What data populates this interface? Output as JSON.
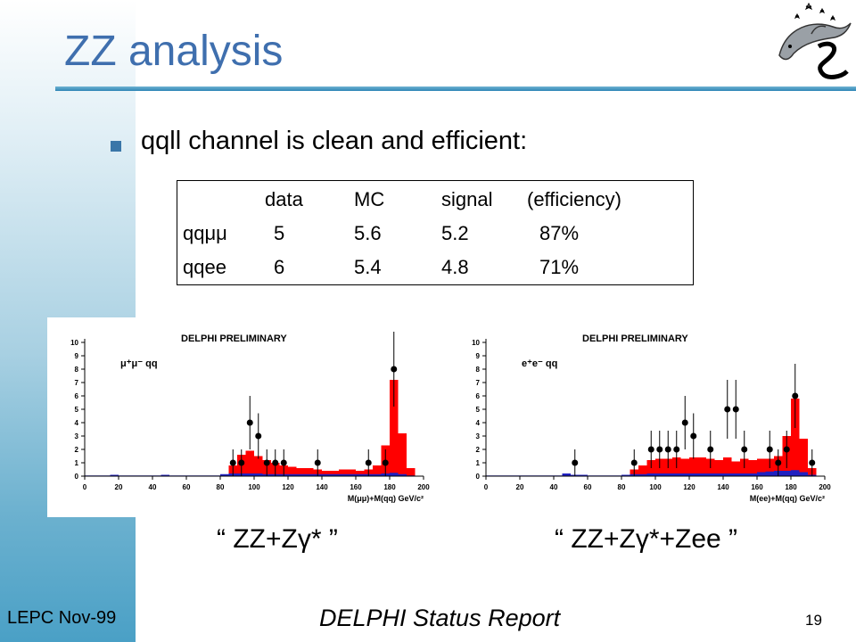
{
  "slide": {
    "title": "ZZ analysis",
    "bullet": "qqll channel is clean and efficient:",
    "footer_left": "LEPC Nov-99",
    "footer_center": "DELPHI Status Report",
    "page_number": "19",
    "colors": {
      "title": "#3f6fae",
      "rule": "#2f86b6",
      "sidebar": "#4aa0c6",
      "bullet": "#3a76a8"
    },
    "logo_icon": "delphi-dolphin-logo-icon"
  },
  "table": {
    "headers": [
      "",
      "data",
      "MC",
      "signal",
      "(efficiency)"
    ],
    "rows": [
      [
        "qqμμ",
        "5",
        "5.6",
        "5.2",
        "87%"
      ],
      [
        "qqee",
        "6",
        "5.4",
        "4.8",
        "71%"
      ]
    ]
  },
  "chart_data": [
    {
      "type": "bar",
      "title": "DELPHI PRELIMINARY",
      "annotation": "μ⁺μ⁻ qq",
      "xlabel": "M(μμ)+M(qq) GeV/c²",
      "caption": "“ ZZ+Zγ* ”",
      "xlim": [
        0,
        200
      ],
      "ylim": [
        0,
        10
      ],
      "xticks": [
        "0",
        "20",
        "40",
        "60",
        "80",
        "100",
        "120",
        "140",
        "160",
        "180",
        "200"
      ],
      "yticks": [
        "0",
        "1",
        "2",
        "3",
        "4",
        "5",
        "6",
        "7",
        "8",
        "9",
        "10"
      ],
      "bin_width": 5,
      "mc": {
        "color": "#ff0000",
        "bins": [
          [
            85,
            0.8
          ],
          [
            90,
            1.6
          ],
          [
            95,
            1.9
          ],
          [
            100,
            1.5
          ],
          [
            105,
            1.2
          ],
          [
            110,
            1.0
          ],
          [
            115,
            0.8
          ],
          [
            120,
            0.7
          ],
          [
            125,
            0.6
          ],
          [
            130,
            0.6
          ],
          [
            135,
            0.5
          ],
          [
            140,
            0.4
          ],
          [
            145,
            0.4
          ],
          [
            150,
            0.5
          ],
          [
            155,
            0.5
          ],
          [
            160,
            0.4
          ],
          [
            165,
            0.5
          ],
          [
            170,
            0.8
          ],
          [
            175,
            2.3
          ],
          [
            180,
            7.2
          ],
          [
            185,
            3.2
          ],
          [
            190,
            0.6
          ]
        ]
      },
      "background": {
        "color": "#2020c0",
        "bins": [
          [
            0,
            0.05
          ],
          [
            5,
            0.05
          ],
          [
            10,
            0.05
          ],
          [
            15,
            0.1
          ],
          [
            20,
            0.05
          ],
          [
            25,
            0.05
          ],
          [
            30,
            0.05
          ],
          [
            35,
            0.05
          ],
          [
            40,
            0.05
          ],
          [
            45,
            0.1
          ],
          [
            50,
            0.05
          ],
          [
            55,
            0.05
          ],
          [
            60,
            0.05
          ],
          [
            65,
            0.05
          ],
          [
            70,
            0.05
          ],
          [
            75,
            0.05
          ],
          [
            80,
            0.15
          ],
          [
            85,
            0.2
          ],
          [
            90,
            0.2
          ],
          [
            95,
            0.2
          ],
          [
            100,
            0.2
          ],
          [
            105,
            0.15
          ],
          [
            110,
            0.15
          ],
          [
            115,
            0.15
          ],
          [
            120,
            0.15
          ],
          [
            125,
            0.15
          ],
          [
            130,
            0.15
          ],
          [
            135,
            0.15
          ],
          [
            140,
            0.15
          ],
          [
            145,
            0.15
          ],
          [
            150,
            0.15
          ],
          [
            155,
            0.15
          ],
          [
            160,
            0.15
          ],
          [
            165,
            0.15
          ],
          [
            170,
            0.15
          ],
          [
            175,
            0.2
          ],
          [
            180,
            0.25
          ],
          [
            185,
            0.15
          ],
          [
            190,
            0.05
          ]
        ]
      },
      "data": [
        {
          "x": 87.5,
          "y": 1,
          "err": 1.0
        },
        {
          "x": 92.5,
          "y": 1,
          "err": 1.0
        },
        {
          "x": 97.5,
          "y": 4,
          "err": 2.0
        },
        {
          "x": 102.5,
          "y": 3,
          "err": 1.7
        },
        {
          "x": 107.5,
          "y": 1,
          "err": 1.0
        },
        {
          "x": 112.5,
          "y": 1,
          "err": 1.0
        },
        {
          "x": 117.5,
          "y": 1,
          "err": 1.0
        },
        {
          "x": 137.5,
          "y": 1,
          "err": 1.0
        },
        {
          "x": 167.5,
          "y": 1,
          "err": 1.0
        },
        {
          "x": 177.5,
          "y": 1,
          "err": 1.0
        },
        {
          "x": 182.5,
          "y": 8,
          "err": 2.8
        }
      ]
    },
    {
      "type": "bar",
      "title": "DELPHI PRELIMINARY",
      "annotation": "e⁺e⁻ qq",
      "xlabel": "M(ee)+M(qq) GeV/c²",
      "caption": "“ ZZ+Zγ*+Zee ”",
      "xlim": [
        0,
        200
      ],
      "ylim": [
        0,
        10
      ],
      "xticks": [
        "0",
        "20",
        "40",
        "60",
        "80",
        "100",
        "120",
        "140",
        "160",
        "180",
        "200"
      ],
      "yticks": [
        "0",
        "1",
        "2",
        "3",
        "4",
        "5",
        "6",
        "7",
        "8",
        "9",
        "10"
      ],
      "bin_width": 5,
      "mc": {
        "color": "#ff0000",
        "bins": [
          [
            85,
            0.5
          ],
          [
            90,
            0.8
          ],
          [
            95,
            1.2
          ],
          [
            100,
            1.3
          ],
          [
            105,
            1.3
          ],
          [
            110,
            1.4
          ],
          [
            115,
            1.3
          ],
          [
            120,
            1.4
          ],
          [
            125,
            1.4
          ],
          [
            130,
            1.3
          ],
          [
            135,
            1.2
          ],
          [
            140,
            1.4
          ],
          [
            145,
            1.1
          ],
          [
            150,
            1.3
          ],
          [
            155,
            1.2
          ],
          [
            160,
            1.3
          ],
          [
            165,
            1.3
          ],
          [
            170,
            1.5
          ],
          [
            175,
            3.0
          ],
          [
            180,
            5.8
          ],
          [
            185,
            2.8
          ],
          [
            190,
            0.6
          ]
        ]
      },
      "background": {
        "color": "#2020c0",
        "bins": [
          [
            0,
            0.05
          ],
          [
            5,
            0.05
          ],
          [
            10,
            0.05
          ],
          [
            15,
            0.05
          ],
          [
            20,
            0.05
          ],
          [
            25,
            0.05
          ],
          [
            30,
            0.05
          ],
          [
            35,
            0.05
          ],
          [
            40,
            0.05
          ],
          [
            45,
            0.2
          ],
          [
            50,
            0.1
          ],
          [
            55,
            0.1
          ],
          [
            60,
            0.05
          ],
          [
            65,
            0.05
          ],
          [
            70,
            0.05
          ],
          [
            75,
            0.05
          ],
          [
            80,
            0.1
          ],
          [
            85,
            0.15
          ],
          [
            90,
            0.15
          ],
          [
            95,
            0.2
          ],
          [
            100,
            0.2
          ],
          [
            105,
            0.2
          ],
          [
            110,
            0.2
          ],
          [
            115,
            0.2
          ],
          [
            120,
            0.2
          ],
          [
            125,
            0.2
          ],
          [
            130,
            0.2
          ],
          [
            135,
            0.2
          ],
          [
            140,
            0.2
          ],
          [
            145,
            0.2
          ],
          [
            150,
            0.2
          ],
          [
            155,
            0.2
          ],
          [
            160,
            0.3
          ],
          [
            165,
            0.35
          ],
          [
            170,
            0.4
          ],
          [
            175,
            0.4
          ],
          [
            180,
            0.45
          ],
          [
            185,
            0.3
          ],
          [
            190,
            0.1
          ]
        ]
      },
      "data": [
        {
          "x": 52.5,
          "y": 1,
          "err": 1.0
        },
        {
          "x": 87.5,
          "y": 1,
          "err": 1.0
        },
        {
          "x": 97.5,
          "y": 2,
          "err": 1.4
        },
        {
          "x": 102.5,
          "y": 2,
          "err": 1.4
        },
        {
          "x": 107.5,
          "y": 2,
          "err": 1.4
        },
        {
          "x": 112.5,
          "y": 2,
          "err": 1.4
        },
        {
          "x": 117.5,
          "y": 4,
          "err": 2.0
        },
        {
          "x": 122.5,
          "y": 3,
          "err": 1.7
        },
        {
          "x": 132.5,
          "y": 2,
          "err": 1.4
        },
        {
          "x": 142.5,
          "y": 5,
          "err": 2.2
        },
        {
          "x": 147.5,
          "y": 5,
          "err": 2.2
        },
        {
          "x": 152.5,
          "y": 2,
          "err": 1.4
        },
        {
          "x": 167.5,
          "y": 2,
          "err": 1.4
        },
        {
          "x": 172.5,
          "y": 1,
          "err": 1.0
        },
        {
          "x": 177.5,
          "y": 2,
          "err": 1.4
        },
        {
          "x": 182.5,
          "y": 6,
          "err": 2.4
        },
        {
          "x": 192.5,
          "y": 1,
          "err": 1.0
        }
      ]
    }
  ]
}
